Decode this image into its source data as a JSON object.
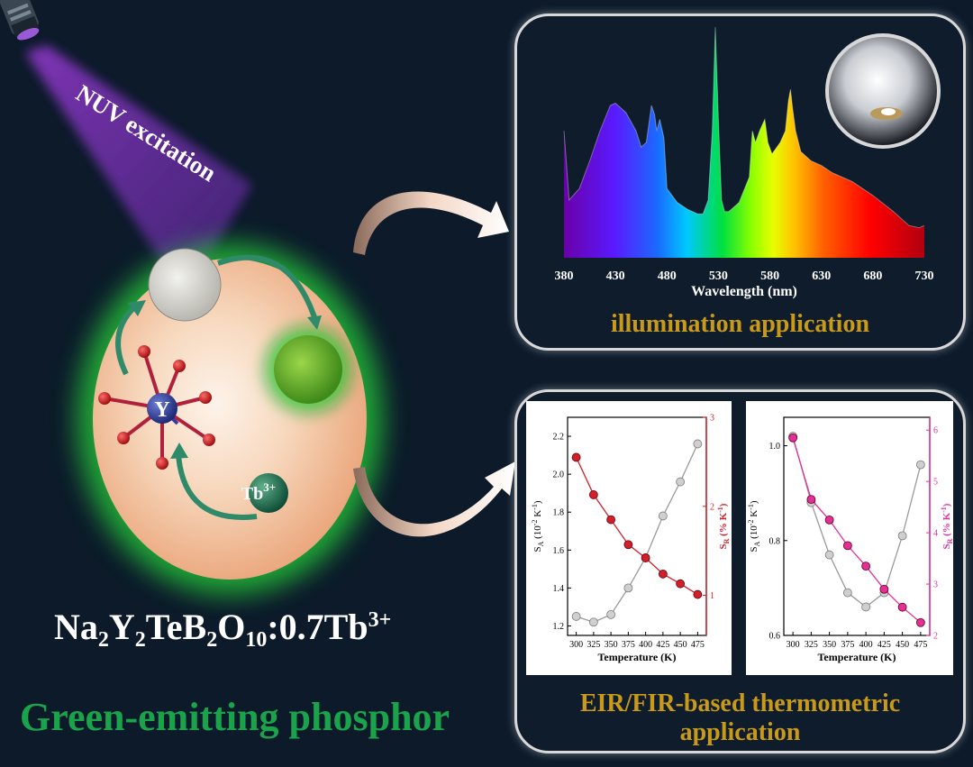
{
  "labels": {
    "excitation": "NUV excitation",
    "formula": {
      "a": "Na",
      "b": "2",
      "c": "Y",
      "d": "2",
      "e": "TeB",
      "f": "2",
      "g": "O",
      "h": "10",
      "i": ":0.7Tb",
      "j": "3+"
    },
    "phosphor_type": "Green-emitting phosphor",
    "center_atom": "Y",
    "dopant": "Tb",
    "dopant_charge": "3+"
  },
  "panels": {
    "illumination": {
      "title": "illumination application"
    },
    "thermometry": {
      "title_line1": "EIR/FIR-based thermometric",
      "title_line2": "application"
    }
  },
  "colors": {
    "background": "#0c1a2a",
    "accent_gold": "#c99a1a",
    "green": "#1aa34a",
    "sr_left": "#d0202a",
    "sr_right": "#e0309a"
  },
  "chart_data": [
    {
      "type": "area",
      "xlabel": "Wavelength (nm)",
      "ylabel": "",
      "xlim": [
        380,
        730
      ],
      "xticks": [
        380,
        430,
        480,
        530,
        580,
        630,
        680,
        730
      ],
      "x": [
        380,
        385,
        395,
        405,
        415,
        425,
        430,
        440,
        450,
        455,
        460,
        465,
        468,
        470,
        473,
        477,
        480,
        490,
        500,
        510,
        515,
        520,
        524,
        527,
        530,
        533,
        536,
        540,
        550,
        560,
        563,
        566,
        570,
        575,
        578,
        582,
        590,
        595,
        598,
        600,
        602,
        605,
        610,
        620,
        630,
        640,
        660,
        680,
        700,
        715,
        725,
        730
      ],
      "values": [
        0.55,
        0.25,
        0.3,
        0.42,
        0.55,
        0.66,
        0.67,
        0.63,
        0.55,
        0.48,
        0.5,
        0.66,
        0.62,
        0.55,
        0.6,
        0.52,
        0.3,
        0.24,
        0.21,
        0.19,
        0.19,
        0.25,
        0.55,
        1.0,
        0.6,
        0.25,
        0.2,
        0.2,
        0.24,
        0.35,
        0.55,
        0.5,
        0.55,
        0.6,
        0.5,
        0.45,
        0.5,
        0.55,
        0.68,
        0.73,
        0.65,
        0.55,
        0.46,
        0.42,
        0.4,
        0.37,
        0.33,
        0.27,
        0.2,
        0.14,
        0.13,
        0.14
      ]
    },
    {
      "type": "line",
      "xlabel": "Temperature (K)",
      "ylabel_left": "S_A (10^-2 K^-1)",
      "ylabel_right": "S_R (% K^-1)",
      "x": [
        300,
        325,
        350,
        375,
        400,
        425,
        450,
        475
      ],
      "xticks": [
        300,
        325,
        350,
        375,
        400,
        425,
        450,
        475
      ],
      "left_ylim": [
        1.15,
        2.3
      ],
      "left_yticks": [
        1.2,
        1.4,
        1.6,
        1.8,
        2.0,
        2.2
      ],
      "right_ylim": [
        0.55,
        3.0
      ],
      "right_yticks": [
        1,
        2,
        3
      ],
      "series": [
        {
          "axis": "left",
          "values": [
            1.25,
            1.22,
            1.26,
            1.4,
            1.56,
            1.78,
            1.96,
            2.16
          ]
        },
        {
          "axis": "right",
          "values": [
            2.55,
            2.13,
            1.85,
            1.57,
            1.42,
            1.24,
            1.13,
            1.01
          ]
        }
      ]
    },
    {
      "type": "line",
      "xlabel": "Temperature (K)",
      "ylabel_left": "S_A (10^-2 K^-1)",
      "ylabel_right": "S_R (% K^-1)",
      "x": [
        300,
        325,
        350,
        375,
        400,
        425,
        450,
        475
      ],
      "xticks": [
        300,
        325,
        350,
        375,
        400,
        425,
        450,
        475
      ],
      "left_ylim": [
        0.6,
        1.06
      ],
      "left_yticks": [
        0.6,
        0.8,
        1.0
      ],
      "right_ylim": [
        2,
        6.25
      ],
      "right_yticks": [
        2,
        3,
        4,
        5,
        6
      ],
      "series": [
        {
          "axis": "left",
          "values": [
            1.02,
            0.88,
            0.77,
            0.69,
            0.66,
            0.69,
            0.81,
            0.96
          ]
        },
        {
          "axis": "right",
          "values": [
            5.85,
            4.65,
            4.25,
            3.75,
            3.35,
            2.9,
            2.55,
            2.25
          ]
        }
      ]
    }
  ]
}
